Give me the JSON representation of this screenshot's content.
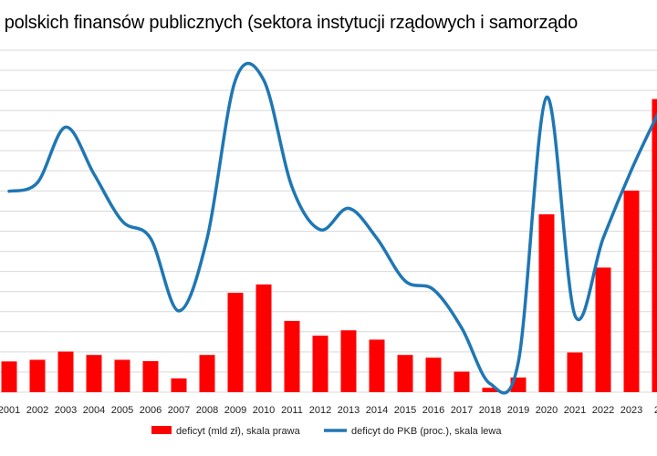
{
  "chart_data": {
    "type": "bar+line",
    "title": "t polskich finansów publicznych (sektora instytucji rządowych i samorządo",
    "categories": [
      "2001",
      "2002",
      "2003",
      "2004",
      "2005",
      "2006",
      "2007",
      "2008",
      "2009",
      "2010",
      "2011",
      "2012",
      "2013",
      "2014",
      "2015",
      "2016",
      "2017",
      "2018",
      "2019",
      "2020",
      "2021",
      "2022",
      "2023",
      "20"
    ],
    "series": [
      {
        "name": "deficyt (mld zł), skala prawa",
        "type": "bar",
        "axis": "right",
        "color": "#ff0000",
        "values": [
          25.2,
          26.5,
          33.2,
          30.5,
          26.5,
          25.4,
          11.3,
          30.5,
          81.3,
          88.2,
          58.3,
          46.3,
          50.6,
          43.0,
          30.5,
          28.2,
          16.8,
          3.6,
          12.0,
          145.6,
          32.5,
          102.0,
          165.0,
          240.0
        ]
      },
      {
        "name": "deficyt do PKB (proc.), skala lewa",
        "type": "line",
        "axis": "left",
        "color": "#1f77b4",
        "values": [
          4.7,
          4.9,
          6.2,
          5.1,
          4.0,
          3.6,
          1.9,
          3.6,
          7.3,
          7.3,
          4.8,
          3.8,
          4.3,
          3.6,
          2.6,
          2.4,
          1.5,
          0.2,
          0.7,
          6.9,
          1.8,
          3.6,
          5.2,
          6.6
        ]
      }
    ],
    "left_axis": {
      "ylim": [
        0,
        8
      ]
    },
    "right_axis": {
      "ylim": [
        0,
        280
      ]
    },
    "grid": true,
    "legend": "bottom"
  }
}
